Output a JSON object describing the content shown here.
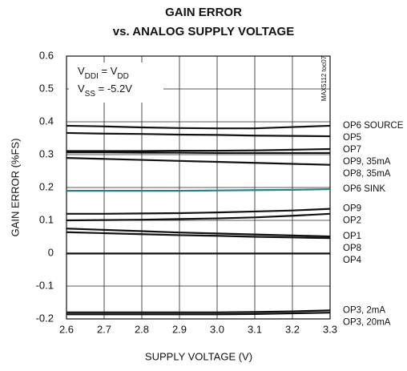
{
  "chart_data": {
    "type": "line",
    "title": "GAIN ERROR",
    "subtitle": "vs. ANALOG SUPPLY VOLTAGE",
    "x_label": "SUPPLY VOLTAGE (V)",
    "y_label": "GAIN ERROR (%FS)",
    "side_note": "MAX5112 toc07",
    "annotation": [
      [
        {
          "text": "V"
        },
        {
          "sub": "DDI"
        },
        {
          "text": " = V"
        },
        {
          "sub": "DD"
        }
      ],
      [
        {
          "text": "V"
        },
        {
          "sub": "SS"
        },
        {
          "text": " = -5.2V"
        }
      ]
    ],
    "x": [
      2.6,
      2.7,
      2.8,
      2.9,
      3.0,
      3.1,
      3.2,
      3.3
    ],
    "xlim": [
      2.6,
      3.3
    ],
    "xticks": [
      2.6,
      2.7,
      2.8,
      2.9,
      {
        "value": 3,
        "label": "3.0"
      },
      3.1,
      3.2,
      3.3
    ],
    "ylim": [
      -0.2,
      0.6
    ],
    "yticks": [
      -0.2,
      -0.1,
      0,
      0.1,
      0.2,
      0.3,
      0.4,
      0.5,
      0.6
    ],
    "grid": true,
    "series": [
      {
        "name": "OP6 SOURCE",
        "color": "#111111",
        "values": [
          0.388,
          0.386,
          0.383,
          0.381,
          0.38,
          0.38,
          0.384,
          0.388
        ]
      },
      {
        "name": "OP5",
        "color": "#111111",
        "values": [
          0.366,
          0.364,
          0.363,
          0.361,
          0.36,
          0.358,
          0.357,
          0.356
        ]
      },
      {
        "name": "OP7",
        "color": "#111111",
        "values": [
          0.311,
          0.311,
          0.311,
          0.312,
          0.312,
          0.313,
          0.315,
          0.317
        ]
      },
      {
        "name": "OP9, 35mA",
        "color": "#111111",
        "values": [
          0.307,
          0.307,
          0.306,
          0.306,
          0.305,
          0.305,
          0.305,
          0.305
        ]
      },
      {
        "name": "OP8, 35mA",
        "color": "#111111",
        "values": [
          0.29,
          0.287,
          0.284,
          0.281,
          0.278,
          0.275,
          0.272,
          0.269
        ]
      },
      {
        "name": "OP6 SINK",
        "color": "#2a7f8a",
        "values": [
          0.19,
          0.19,
          0.19,
          0.19,
          0.191,
          0.192,
          0.193,
          0.195
        ]
      },
      {
        "name": "OP9",
        "color": "#111111",
        "values": [
          0.12,
          0.12,
          0.121,
          0.122,
          0.124,
          0.127,
          0.13,
          0.135
        ]
      },
      {
        "name": "OP2",
        "color": "#111111",
        "values": [
          0.1,
          0.101,
          0.102,
          0.104,
          0.106,
          0.109,
          0.114,
          0.12
        ]
      },
      {
        "name": "OP1",
        "color": "#111111",
        "values": [
          0.075,
          0.071,
          0.067,
          0.063,
          0.06,
          0.057,
          0.054,
          0.051
        ]
      },
      {
        "name": "OP8",
        "color": "#111111",
        "values": [
          0.064,
          0.061,
          0.058,
          0.055,
          0.053,
          0.05,
          0.048,
          0.046
        ]
      },
      {
        "name": "OP4",
        "color": "#111111",
        "values": [
          -0.001,
          -0.001,
          -0.001,
          -0.001,
          -0.001,
          -0.001,
          -0.001,
          -0.001
        ]
      },
      {
        "name": "OP3, 2mA",
        "color": "#111111",
        "values": [
          -0.18,
          -0.18,
          -0.18,
          -0.18,
          -0.18,
          -0.179,
          -0.177,
          -0.174
        ]
      },
      {
        "name": "OP3, 20mA",
        "color": "#111111",
        "values": [
          -0.186,
          -0.186,
          -0.186,
          -0.186,
          -0.186,
          -0.185,
          -0.183,
          -0.181
        ]
      }
    ]
  }
}
